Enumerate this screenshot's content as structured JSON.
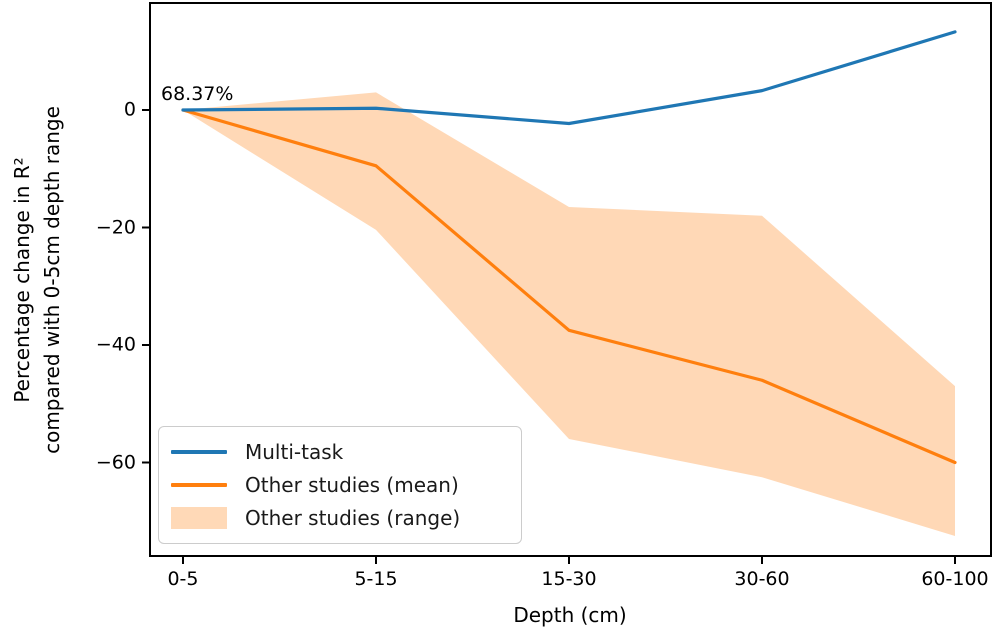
{
  "figure": {
    "annotation": "68.37%",
    "xlabel": "Depth (cm)",
    "ylabel_line1": "Percentage change in R²",
    "ylabel_line2": "compared with 0-5cm depth range"
  },
  "legend": {
    "items": [
      {
        "label": "Multi-task",
        "type": "line",
        "color": "#1f77b4"
      },
      {
        "label": "Other studies (mean)",
        "type": "line",
        "color": "#ff7f0e"
      },
      {
        "label": "Other studies (range)",
        "type": "patch",
        "color": "#ffd9b7"
      }
    ],
    "position": "lower left"
  },
  "chart_data": {
    "type": "line",
    "title": "",
    "xlabel": "Depth (cm)",
    "ylabel": "Percentage change in R² compared with 0-5cm depth range",
    "categories": [
      "0-5",
      "5-15",
      "15-30",
      "30-60",
      "60-100"
    ],
    "series": [
      {
        "name": "Multi-task",
        "color": "#1f77b4",
        "values": [
          0,
          0.3,
          -2.3,
          3.3,
          13.3
        ]
      },
      {
        "name": "Other studies (mean)",
        "color": "#ff7f0e",
        "values": [
          0,
          -9.5,
          -37.5,
          -46,
          -60
        ]
      }
    ],
    "band": {
      "name": "Other studies (range)",
      "color": "#ff7f0e",
      "opacity": 0.3,
      "upper": [
        0,
        3,
        -16.5,
        -18,
        -47
      ],
      "lower": [
        0,
        -20.4,
        -56,
        -62.5,
        -72.5
      ]
    },
    "yticks": [
      {
        "label": "0",
        "value": 0
      },
      {
        "label": "−20",
        "value": -20
      },
      {
        "label": "−40",
        "value": -40
      },
      {
        "label": "−60",
        "value": -60
      }
    ],
    "ylim": [
      -76.5,
      18.2
    ],
    "grid": false,
    "legend_position": "lower left",
    "annotation": {
      "text": "68.37%",
      "at_category": "0-5",
      "at_value": 0
    }
  }
}
